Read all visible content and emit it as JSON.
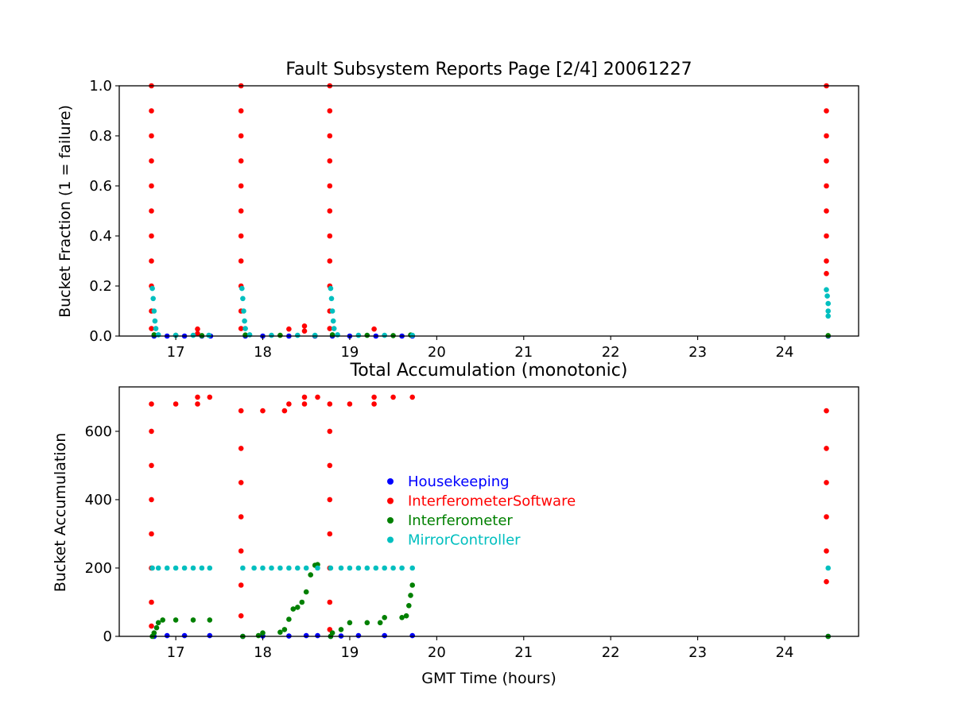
{
  "chart_data": [
    {
      "type": "scatter",
      "title": "Fault Subsystem Reports Page [2/4] 20061227",
      "xlabel": "",
      "ylabel": "Bucket Fraction (1 = failure)",
      "xlim": [
        16.35,
        24.85
      ],
      "ylim": [
        0,
        1.0
      ],
      "xticks": [
        17,
        18,
        19,
        20,
        21,
        22,
        23,
        24
      ],
      "yticks": [
        0.0,
        0.2,
        0.4,
        0.6,
        0.8,
        1.0
      ],
      "ytick_labels": [
        "0.0",
        "0.2",
        "0.4",
        "0.6",
        "0.8",
        "1.0"
      ],
      "grid": false,
      "series": [
        {
          "name": "Housekeeping",
          "color": "#0000ff",
          "points": [
            [
              16.75,
              0
            ],
            [
              16.9,
              0
            ],
            [
              17.1,
              0
            ],
            [
              17.3,
              0
            ],
            [
              17.4,
              0
            ],
            [
              17.8,
              0
            ],
            [
              18.0,
              0
            ],
            [
              18.3,
              0
            ],
            [
              18.6,
              0
            ],
            [
              18.8,
              0
            ],
            [
              19.0,
              0
            ],
            [
              19.3,
              0
            ],
            [
              19.6,
              0
            ],
            [
              19.72,
              0
            ],
            [
              24.5,
              0
            ]
          ]
        },
        {
          "name": "InterferometerSoftware",
          "color": "#ff0000",
          "points": [
            [
              16.72,
              1.0
            ],
            [
              16.72,
              0.9
            ],
            [
              16.72,
              0.8
            ],
            [
              16.72,
              0.7
            ],
            [
              16.72,
              0.6
            ],
            [
              16.72,
              0.5
            ],
            [
              16.72,
              0.4
            ],
            [
              16.72,
              0.3
            ],
            [
              16.72,
              0.2
            ],
            [
              16.72,
              0.1
            ],
            [
              16.72,
              0.03
            ],
            [
              17.25,
              0.028
            ],
            [
              17.25,
              0.01
            ],
            [
              17.75,
              1.0
            ],
            [
              17.75,
              0.9
            ],
            [
              17.75,
              0.8
            ],
            [
              17.75,
              0.7
            ],
            [
              17.75,
              0.6
            ],
            [
              17.75,
              0.5
            ],
            [
              17.75,
              0.4
            ],
            [
              17.75,
              0.3
            ],
            [
              17.75,
              0.2
            ],
            [
              17.75,
              0.1
            ],
            [
              17.75,
              0.03
            ],
            [
              18.3,
              0.028
            ],
            [
              18.48,
              0.04
            ],
            [
              18.48,
              0.02
            ],
            [
              18.77,
              1.0
            ],
            [
              18.77,
              0.9
            ],
            [
              18.77,
              0.8
            ],
            [
              18.77,
              0.7
            ],
            [
              18.77,
              0.6
            ],
            [
              18.77,
              0.5
            ],
            [
              18.77,
              0.4
            ],
            [
              18.77,
              0.3
            ],
            [
              18.77,
              0.2
            ],
            [
              18.77,
              0.1
            ],
            [
              18.77,
              0.03
            ],
            [
              19.28,
              0.028
            ],
            [
              24.48,
              1.0
            ],
            [
              24.48,
              0.9
            ],
            [
              24.48,
              0.8
            ],
            [
              24.48,
              0.7
            ],
            [
              24.48,
              0.6
            ],
            [
              24.48,
              0.5
            ],
            [
              24.48,
              0.4
            ],
            [
              24.48,
              0.3
            ],
            [
              24.48,
              0.25
            ]
          ]
        },
        {
          "name": "Interferometer",
          "color": "#008000",
          "points": [
            [
              16.75,
              0.005
            ],
            [
              17.0,
              0.003
            ],
            [
              17.3,
              0.002
            ],
            [
              17.8,
              0.004
            ],
            [
              18.2,
              0.003
            ],
            [
              18.6,
              0.002
            ],
            [
              18.8,
              0.005
            ],
            [
              19.2,
              0.003
            ],
            [
              19.5,
              0.002
            ],
            [
              19.7,
              0.004
            ],
            [
              24.5,
              0.002
            ]
          ]
        },
        {
          "name": "MirrorController",
          "color": "#00bfbf",
          "points": [
            [
              16.73,
              0.19
            ],
            [
              16.74,
              0.15
            ],
            [
              16.75,
              0.1
            ],
            [
              16.76,
              0.06
            ],
            [
              16.77,
              0.03
            ],
            [
              16.8,
              0.005
            ],
            [
              17.0,
              0.003
            ],
            [
              17.2,
              0.003
            ],
            [
              17.38,
              0.003
            ],
            [
              17.76,
              0.19
            ],
            [
              17.77,
              0.15
            ],
            [
              17.78,
              0.1
            ],
            [
              17.79,
              0.06
            ],
            [
              17.8,
              0.03
            ],
            [
              17.85,
              0.005
            ],
            [
              18.1,
              0.003
            ],
            [
              18.4,
              0.003
            ],
            [
              18.6,
              0.003
            ],
            [
              18.78,
              0.19
            ],
            [
              18.79,
              0.15
            ],
            [
              18.8,
              0.1
            ],
            [
              18.81,
              0.06
            ],
            [
              18.82,
              0.03
            ],
            [
              18.86,
              0.005
            ],
            [
              19.1,
              0.003
            ],
            [
              19.4,
              0.003
            ],
            [
              19.72,
              0.003
            ],
            [
              24.48,
              0.185
            ],
            [
              24.49,
              0.16
            ],
            [
              24.5,
              0.13
            ],
            [
              24.5,
              0.1
            ],
            [
              24.5,
              0.08
            ]
          ]
        }
      ]
    },
    {
      "type": "scatter",
      "title": "Total Accumulation (monotonic)",
      "xlabel": "GMT Time (hours)",
      "ylabel": "Bucket Accumulation",
      "xlim": [
        16.35,
        24.85
      ],
      "ylim": [
        0,
        730
      ],
      "xticks": [
        17,
        18,
        19,
        20,
        21,
        22,
        23,
        24
      ],
      "yticks": [
        0,
        200,
        400,
        600
      ],
      "grid": false,
      "legend": {
        "position": "center",
        "entries": [
          {
            "label": "Housekeeping",
            "color": "#0000ff"
          },
          {
            "label": "InterferometerSoftware",
            "color": "#ff0000"
          },
          {
            "label": "Interferometer",
            "color": "#008000"
          },
          {
            "label": "MirrorController",
            "color": "#00bfbf"
          }
        ]
      },
      "series": [
        {
          "name": "Housekeeping",
          "color": "#0000ff",
          "points": [
            [
              16.75,
              0
            ],
            [
              16.9,
              2
            ],
            [
              17.1,
              2
            ],
            [
              17.39,
              2
            ],
            [
              17.77,
              0
            ],
            [
              18.0,
              1
            ],
            [
              18.3,
              1
            ],
            [
              18.5,
              2
            ],
            [
              18.63,
              2
            ],
            [
              18.78,
              0
            ],
            [
              18.9,
              1
            ],
            [
              19.1,
              2
            ],
            [
              19.4,
              2
            ],
            [
              19.72,
              2
            ],
            [
              24.5,
              0
            ]
          ]
        },
        {
          "name": "InterferometerSoftware",
          "color": "#ff0000",
          "points": [
            [
              16.72,
              30
            ],
            [
              16.72,
              100
            ],
            [
              16.72,
              200
            ],
            [
              16.72,
              300
            ],
            [
              16.72,
              400
            ],
            [
              16.72,
              500
            ],
            [
              16.72,
              600
            ],
            [
              16.72,
              680
            ],
            [
              17.0,
              680
            ],
            [
              17.25,
              680
            ],
            [
              17.25,
              700
            ],
            [
              17.39,
              700
            ],
            [
              17.75,
              60
            ],
            [
              17.75,
              150
            ],
            [
              17.75,
              250
            ],
            [
              17.75,
              350
            ],
            [
              17.75,
              450
            ],
            [
              17.75,
              550
            ],
            [
              17.75,
              660
            ],
            [
              18.0,
              660
            ],
            [
              18.25,
              660
            ],
            [
              18.3,
              680
            ],
            [
              18.48,
              680
            ],
            [
              18.48,
              700
            ],
            [
              18.63,
              700
            ],
            [
              18.77,
              20
            ],
            [
              18.77,
              100
            ],
            [
              18.77,
              200
            ],
            [
              18.77,
              300
            ],
            [
              18.77,
              400
            ],
            [
              18.77,
              500
            ],
            [
              18.77,
              600
            ],
            [
              18.77,
              680
            ],
            [
              19.0,
              680
            ],
            [
              19.28,
              680
            ],
            [
              19.28,
              700
            ],
            [
              19.5,
              700
            ],
            [
              19.72,
              700
            ],
            [
              24.48,
              160
            ],
            [
              24.48,
              250
            ],
            [
              24.48,
              350
            ],
            [
              24.48,
              450
            ],
            [
              24.48,
              550
            ],
            [
              24.48,
              660
            ]
          ]
        },
        {
          "name": "Interferometer",
          "color": "#008000",
          "points": [
            [
              16.73,
              0
            ],
            [
              16.75,
              10
            ],
            [
              16.78,
              25
            ],
            [
              16.8,
              40
            ],
            [
              16.85,
              48
            ],
            [
              17.0,
              48
            ],
            [
              17.2,
              48
            ],
            [
              17.39,
              48
            ],
            [
              17.77,
              0
            ],
            [
              17.95,
              2
            ],
            [
              18.0,
              10
            ],
            [
              18.2,
              12
            ],
            [
              18.25,
              20
            ],
            [
              18.3,
              50
            ],
            [
              18.35,
              80
            ],
            [
              18.4,
              85
            ],
            [
              18.45,
              100
            ],
            [
              18.5,
              130
            ],
            [
              18.55,
              180
            ],
            [
              18.6,
              208
            ],
            [
              18.63,
              210
            ],
            [
              18.78,
              0
            ],
            [
              18.8,
              10
            ],
            [
              18.9,
              20
            ],
            [
              19.0,
              40
            ],
            [
              19.2,
              40
            ],
            [
              19.35,
              40
            ],
            [
              19.4,
              55
            ],
            [
              19.6,
              55
            ],
            [
              19.65,
              60
            ],
            [
              19.68,
              90
            ],
            [
              19.7,
              120
            ],
            [
              19.72,
              150
            ],
            [
              24.5,
              0
            ]
          ]
        },
        {
          "name": "MirrorController",
          "color": "#00bfbf",
          "points": [
            [
              16.73,
              200
            ],
            [
              16.8,
              200
            ],
            [
              16.9,
              200
            ],
            [
              17.0,
              200
            ],
            [
              17.1,
              200
            ],
            [
              17.2,
              200
            ],
            [
              17.3,
              200
            ],
            [
              17.39,
              200
            ],
            [
              17.77,
              200
            ],
            [
              17.9,
              200
            ],
            [
              18.0,
              200
            ],
            [
              18.1,
              200
            ],
            [
              18.2,
              200
            ],
            [
              18.3,
              200
            ],
            [
              18.4,
              200
            ],
            [
              18.5,
              200
            ],
            [
              18.63,
              200
            ],
            [
              18.78,
              200
            ],
            [
              18.9,
              200
            ],
            [
              19.0,
              200
            ],
            [
              19.1,
              200
            ],
            [
              19.2,
              200
            ],
            [
              19.3,
              200
            ],
            [
              19.4,
              200
            ],
            [
              19.5,
              200
            ],
            [
              19.6,
              200
            ],
            [
              19.72,
              200
            ],
            [
              24.5,
              200
            ]
          ]
        }
      ]
    }
  ]
}
